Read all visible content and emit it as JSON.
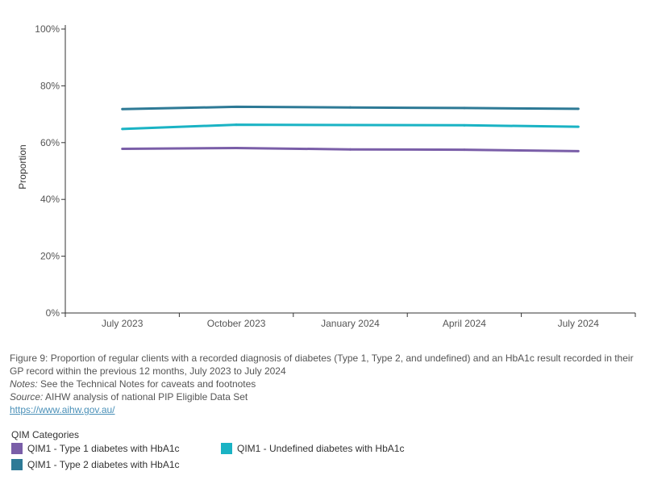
{
  "chart_data": {
    "type": "line",
    "title": "",
    "xlabel": "",
    "ylabel": "Proportion",
    "ylim": [
      0,
      100
    ],
    "yticks": [
      "0%",
      "20%",
      "40%",
      "60%",
      "80%",
      "100%"
    ],
    "ytick_values": [
      0,
      20,
      40,
      60,
      80,
      100
    ],
    "categories": [
      "July 2023",
      "October 2023",
      "January 2024",
      "April 2024",
      "July 2024"
    ],
    "series": [
      {
        "name": "QIM1 - Type 1 diabetes with HbA1c",
        "color": "#7a5ea8",
        "values": [
          57.8,
          58.1,
          57.6,
          57.5,
          57.0
        ]
      },
      {
        "name": "QIM1 - Undefined diabetes with HbA1c",
        "color": "#1ab3c4",
        "values": [
          64.8,
          66.3,
          66.2,
          66.1,
          65.6
        ]
      },
      {
        "name": "QIM1 - Type 2 diabetes with HbA1c",
        "color": "#2e7a96",
        "values": [
          71.8,
          72.6,
          72.4,
          72.2,
          71.9
        ]
      }
    ]
  },
  "caption": {
    "figure_text": "Figure 9: Proportion of regular clients with a recorded diagnosis of diabetes (Type 1, Type 2, and undefined) and an HbA1c result recorded in their GP record within the previous 12 months, July 2023 to July 2024",
    "notes_label": "Notes:",
    "notes_text": " See the Technical Notes for caveats and footnotes",
    "source_label": "Source:",
    "source_text": " AIHW analysis of national PIP Eligible Data Set",
    "link_text": "https://www.aihw.gov.au/"
  },
  "legend": {
    "title": "QIM Categories",
    "items": [
      {
        "label": "QIM1 - Type 1 diabetes with HbA1c",
        "color": "#7a5ea8"
      },
      {
        "label": "QIM1 - Undefined diabetes with HbA1c",
        "color": "#1ab3c4"
      },
      {
        "label": "QIM1 - Type 2 diabetes with HbA1c",
        "color": "#2e7a96"
      }
    ]
  }
}
